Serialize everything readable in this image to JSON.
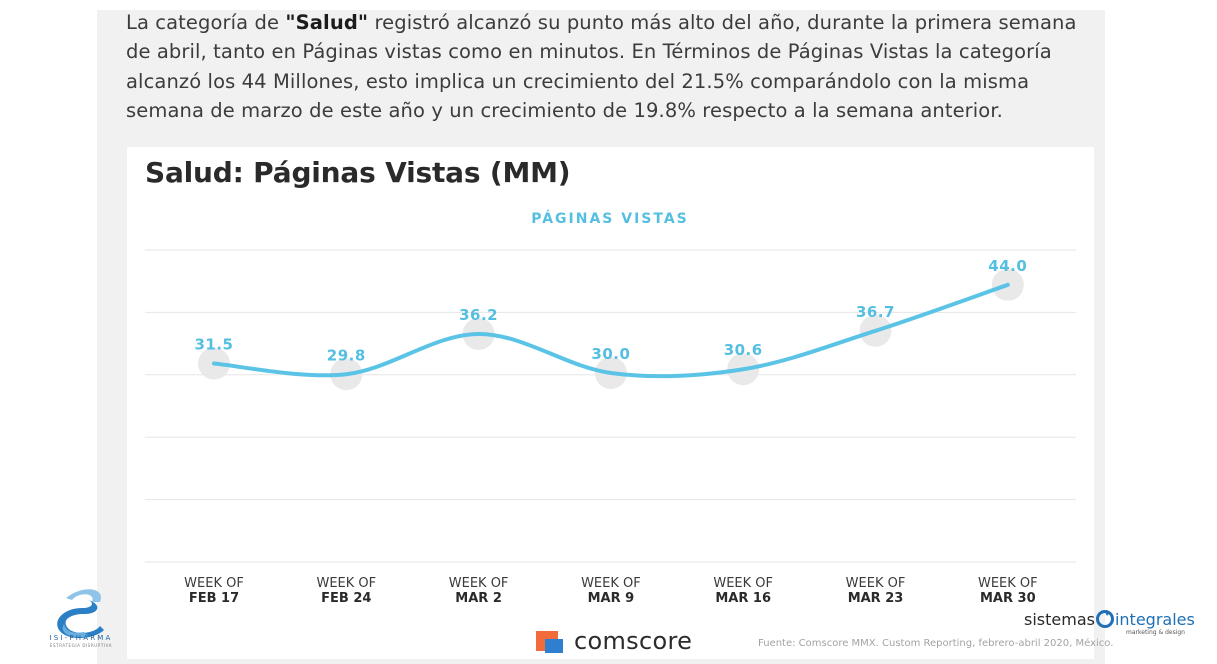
{
  "text": {
    "intro_part1": "La categoría de ",
    "intro_bold": "\"Salud\"",
    "intro_part2": " registró alcanzó su punto más alto del año, durante la primera semana de abril, tanto en Páginas vistas como en minutos. En Términos de Páginas Vistas la categoría alcanzó los 44 Millones, esto implica un crecimiento del 21.5% comparándolo con la misma semana de marzo de este año y un crecimiento de 19.8% respecto a la semana anterior.",
    "source": "Fuente: Comscore MMX. Custom Reporting, febrero-abril 2020, México.",
    "comscore": "comscore",
    "isi_name": "ISI-PHARMA",
    "isi_tagline": "ESTRATEGIA DISRUPTIVA",
    "si_part1": "sistemas",
    "si_part2": "integrales",
    "si_tagline": "marketing & design"
  },
  "colors": {
    "line": "#5bc4e6",
    "label": "#55bfe1",
    "marker": "#e9e9ea",
    "grid": "#e6e6e6"
  },
  "chart_data": {
    "type": "line",
    "title": "Salud: Páginas Vistas (MM)",
    "series": [
      {
        "name": "PÁGINAS VISTAS",
        "values": [
          31.5,
          29.8,
          36.2,
          30.0,
          30.6,
          36.7,
          44.0
        ]
      }
    ],
    "categories": [
      [
        "WEEK OF",
        "FEB 17"
      ],
      [
        "WEEK OF",
        "FEB 24"
      ],
      [
        "WEEK OF",
        "MAR 2"
      ],
      [
        "WEEK OF",
        "MAR 9"
      ],
      [
        "WEEK OF",
        "MAR 16"
      ],
      [
        "WEEK OF",
        "MAR 23"
      ],
      [
        "WEEK OF",
        "MAR 30"
      ]
    ],
    "value_labels": [
      "31.5",
      "29.8",
      "36.2",
      "30.0",
      "30.6",
      "36.7",
      "44.0"
    ],
    "ylim": [
      0,
      50
    ],
    "grid": true,
    "legend": "top-center"
  }
}
